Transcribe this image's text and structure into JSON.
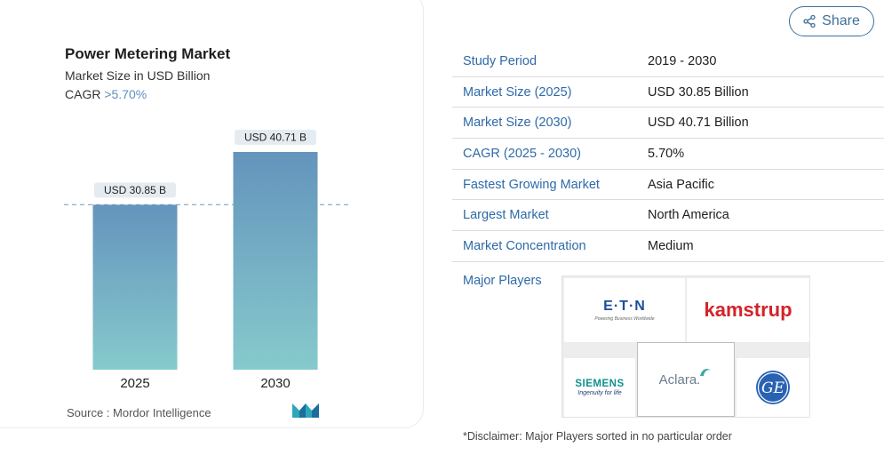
{
  "chart_data": {
    "type": "bar",
    "title": "Power Metering Market",
    "subtitle": "Market Size in USD Billion",
    "cagr_label": "CAGR",
    "cagr_value": ">5.70%",
    "categories": [
      "2025",
      "2030"
    ],
    "values": [
      30.85,
      40.71
    ],
    "data_labels": [
      "USD 30.85 B",
      "USD 40.71 B"
    ],
    "reference_line_value": 30.85,
    "ylim": [
      0,
      45
    ],
    "grid": false,
    "legend": "none",
    "colors": {
      "bar_top": "#6494bd",
      "bar_bottom": "#86cacc",
      "label_bg": "#e5ecf1",
      "refline": "#8aaec8"
    },
    "source": "Source :  Mordor Intelligence"
  },
  "share": {
    "label": "Share",
    "icon": "share-icon"
  },
  "info": [
    {
      "label": "Study Period",
      "value": "2019 - 2030"
    },
    {
      "label": "Market Size (2025)",
      "value": "USD 30.85 Billion"
    },
    {
      "label": "Market Size (2030)",
      "value": "USD 40.71 Billion"
    },
    {
      "label": "CAGR (2025 - 2030)",
      "value": "5.70%"
    },
    {
      "label": "Fastest Growing Market",
      "value": "Asia Pacific"
    },
    {
      "label": "Largest Market",
      "value": "North America"
    },
    {
      "label": "Market Concentration",
      "value": "Medium"
    }
  ],
  "players": {
    "label": "Major Players",
    "logos": [
      {
        "name": "Eaton",
        "word": "E·T·N",
        "tagline": "Powering Business Worldwide"
      },
      {
        "name": "Kamstrup",
        "word": "kamstrup"
      },
      {
        "name": "Siemens",
        "word": "SIEMENS",
        "tagline": "Ingenuity for life"
      },
      {
        "name": "Aclara",
        "word": "Aclara."
      },
      {
        "name": "GE",
        "word": "GE"
      }
    ]
  },
  "disclaimer": "*Disclaimer: Major Players sorted in no particular order"
}
